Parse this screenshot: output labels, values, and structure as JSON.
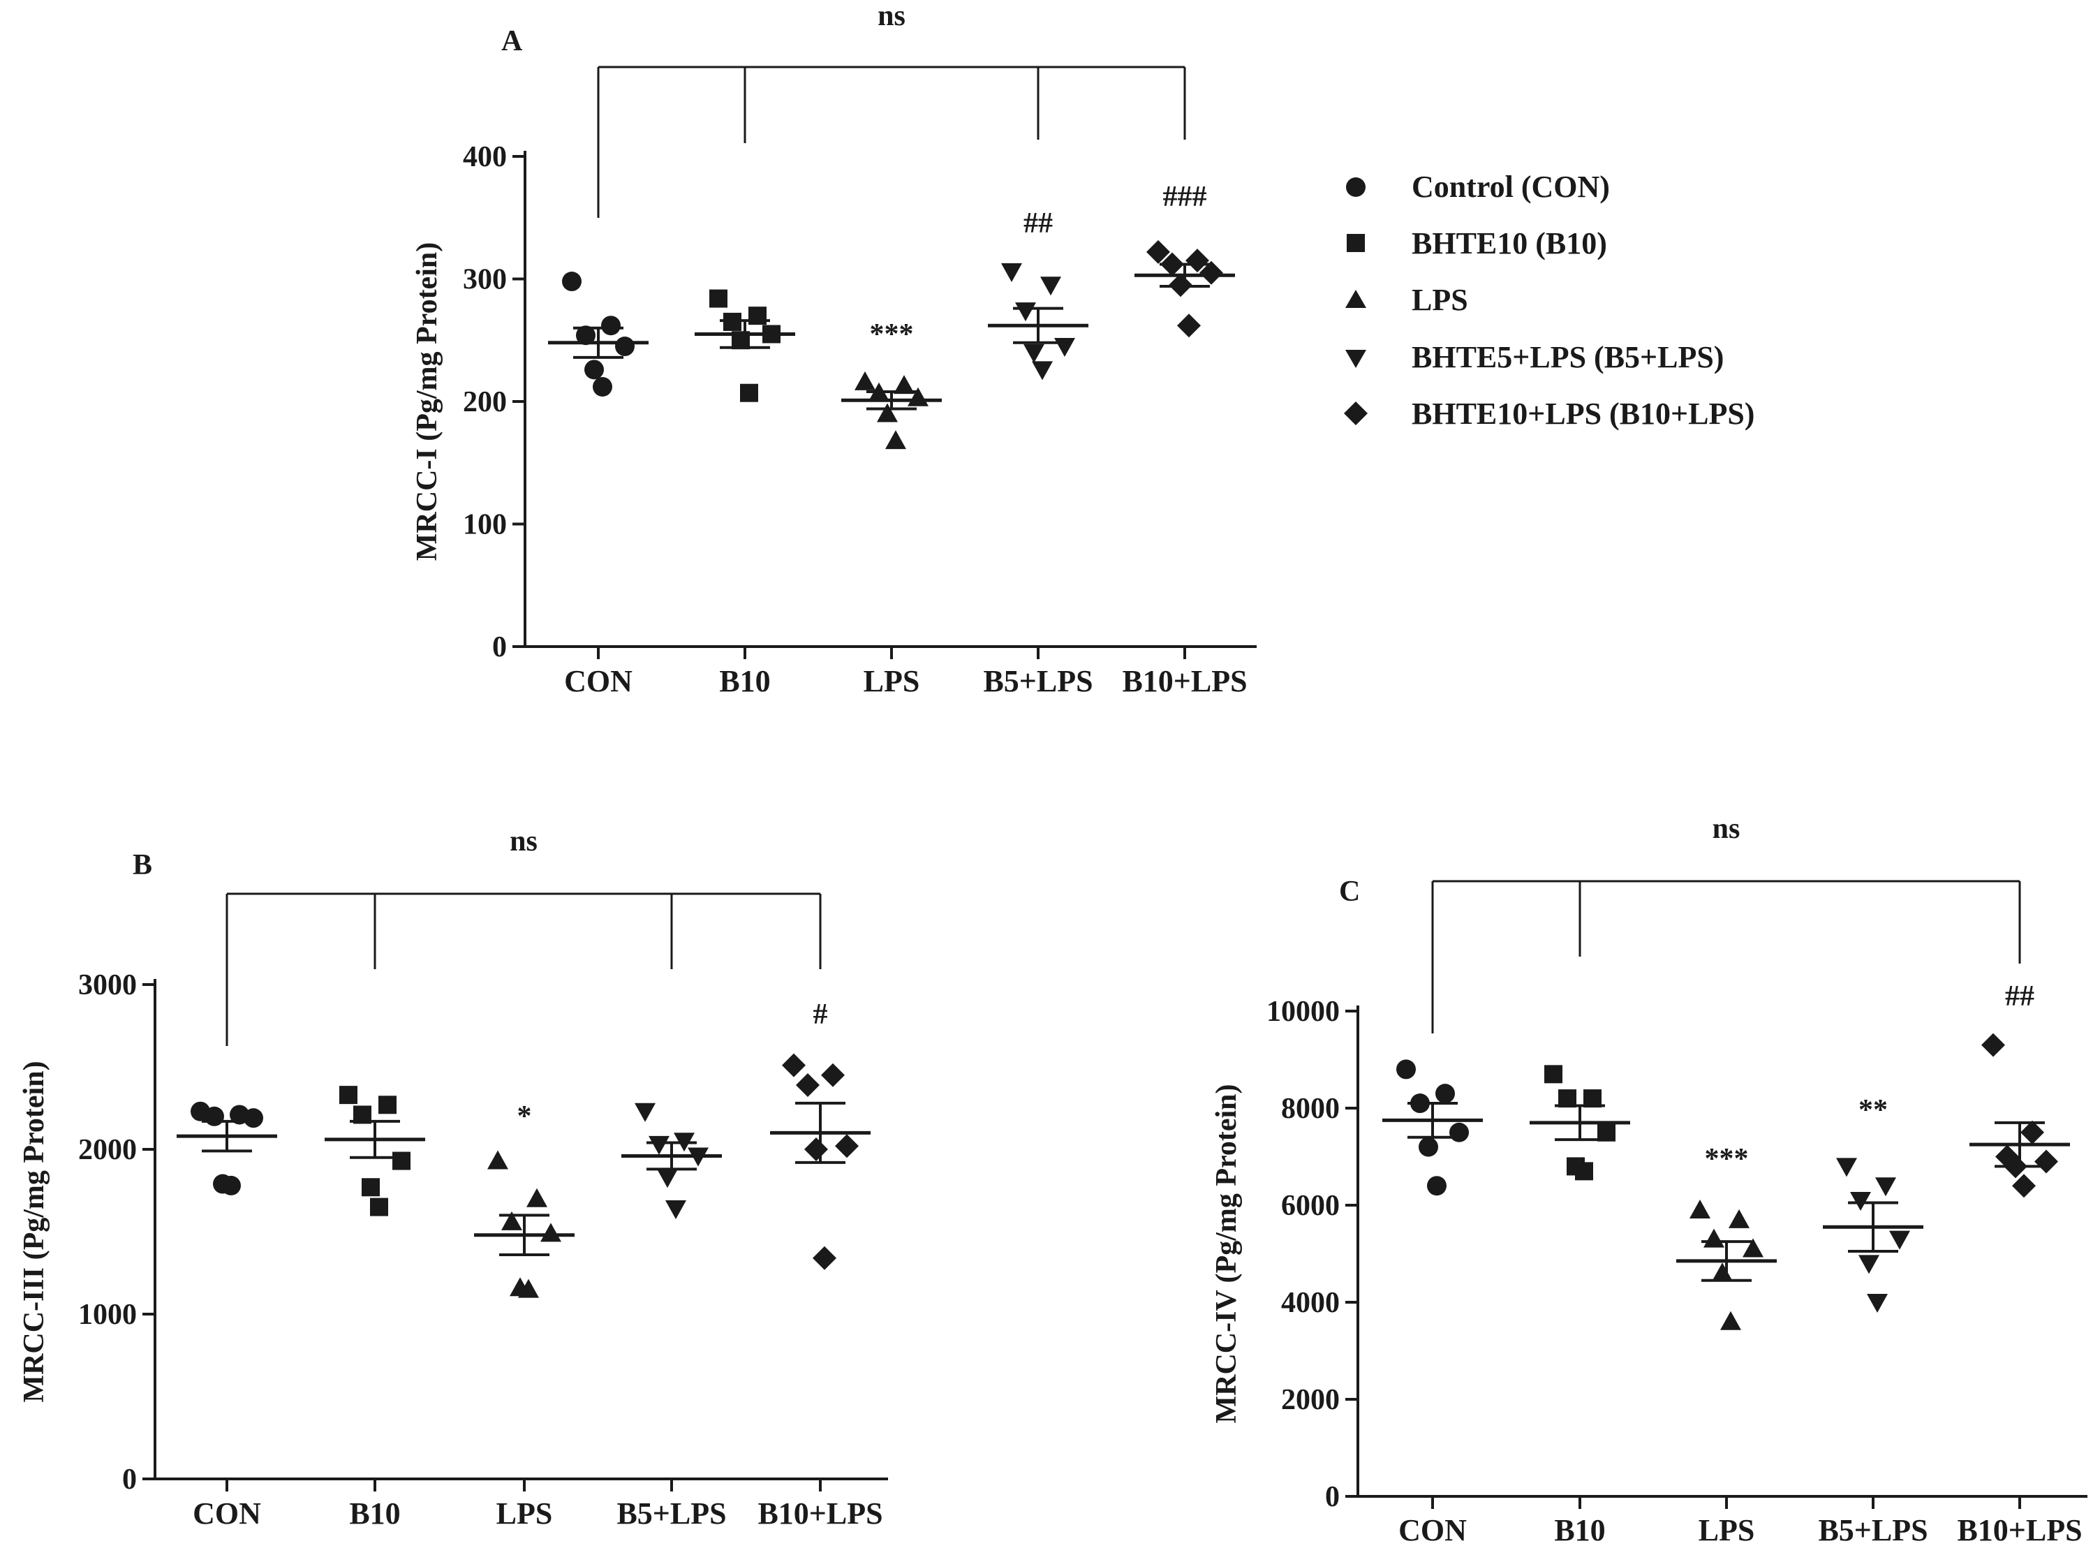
{
  "colors": {
    "ink": "#1a1a1a",
    "background": "#ffffff"
  },
  "legend": {
    "entries": [
      {
        "label": "Control (CON)",
        "marker": "circle"
      },
      {
        "label": "BHTE10 (B10)",
        "marker": "square"
      },
      {
        "label": "LPS",
        "marker": "triangle-up"
      },
      {
        "label": "BHTE5+LPS (B5+LPS)",
        "marker": "triangle-down"
      },
      {
        "label": "BHTE10+LPS (B10+LPS)",
        "marker": "diamond"
      }
    ]
  },
  "chart_data": [
    {
      "panel": "A",
      "type": "scatter",
      "ylabel": "MRCC-I (Pg/mg Protein)",
      "ylim": [
        0,
        400
      ],
      "yticks": [
        0,
        100,
        200,
        300,
        400
      ],
      "categories": [
        "CON",
        "B10",
        "LPS",
        "B5+LPS",
        "B10+LPS"
      ],
      "markers": [
        "circle",
        "square",
        "triangle-up",
        "triangle-down",
        "diamond"
      ],
      "points": [
        [
          298,
          262,
          254,
          245,
          226,
          212
        ],
        [
          284,
          270,
          265,
          255,
          250,
          207
        ],
        [
          216,
          213,
          207,
          203,
          190,
          168
        ],
        [
          306,
          295,
          274,
          245,
          240,
          226
        ],
        [
          322,
          315,
          312,
          305,
          295,
          262
        ]
      ],
      "means": [
        248,
        255,
        201,
        262,
        303
      ],
      "sem": [
        12,
        11,
        7,
        14,
        9
      ],
      "annotations": [
        "",
        "",
        "***",
        "##",
        "###"
      ],
      "bracket_label": "ns",
      "bracket_groups": [
        0,
        1,
        3,
        4
      ]
    },
    {
      "panel": "B",
      "type": "scatter",
      "ylabel": "MRCC-III (Pg/mg Protein)",
      "ylim": [
        0,
        3000
      ],
      "yticks": [
        0,
        1000,
        2000,
        3000
      ],
      "categories": [
        "CON",
        "B10",
        "LPS",
        "B5+LPS",
        "B10+LPS"
      ],
      "markers": [
        "circle",
        "square",
        "triangle-up",
        "triangle-down",
        "diamond"
      ],
      "points": [
        [
          2230,
          2210,
          2200,
          2190,
          1790,
          1780
        ],
        [
          2330,
          2270,
          2210,
          1930,
          1770,
          1650
        ],
        [
          1930,
          1700,
          1560,
          1490,
          1160,
          1150
        ],
        [
          2230,
          2050,
          2030,
          1960,
          1830,
          1640
        ],
        [
          2510,
          2450,
          2390,
          2020,
          2000,
          1340
        ]
      ],
      "means": [
        2080,
        2060,
        1480,
        1960,
        2100
      ],
      "sem": [
        90,
        110,
        120,
        80,
        180
      ],
      "annotations": [
        "",
        "",
        "*",
        "",
        "#"
      ],
      "bracket_label": "ns",
      "bracket_groups": [
        0,
        1,
        3,
        4
      ]
    },
    {
      "panel": "C",
      "type": "scatter",
      "ylabel": "MRCC-IV (Pg/mg Protein)",
      "ylim": [
        0,
        10000
      ],
      "yticks": [
        0,
        2000,
        4000,
        6000,
        8000,
        10000
      ],
      "categories": [
        "CON",
        "B10",
        "LPS",
        "B5+LPS",
        "B10+LPS"
      ],
      "markers": [
        "circle",
        "square",
        "triangle-up",
        "triangle-down",
        "diamond"
      ],
      "points": [
        [
          8800,
          8300,
          8100,
          7500,
          7200,
          6400
        ],
        [
          8700,
          8200,
          8200,
          7500,
          6800,
          6700
        ],
        [
          5900,
          5700,
          5300,
          5100,
          4600,
          3600
        ],
        [
          6800,
          6400,
          6100,
          5300,
          4800,
          4000
        ],
        [
          9300,
          7500,
          7000,
          6900,
          6800,
          6400
        ]
      ],
      "means": [
        7750,
        7700,
        4850,
        5550,
        7250
      ],
      "sem": [
        350,
        350,
        400,
        500,
        450
      ],
      "annotations": [
        "",
        "",
        "***",
        "**",
        "##"
      ],
      "bracket_label": "ns",
      "bracket_groups": [
        0,
        1,
        4
      ]
    }
  ]
}
